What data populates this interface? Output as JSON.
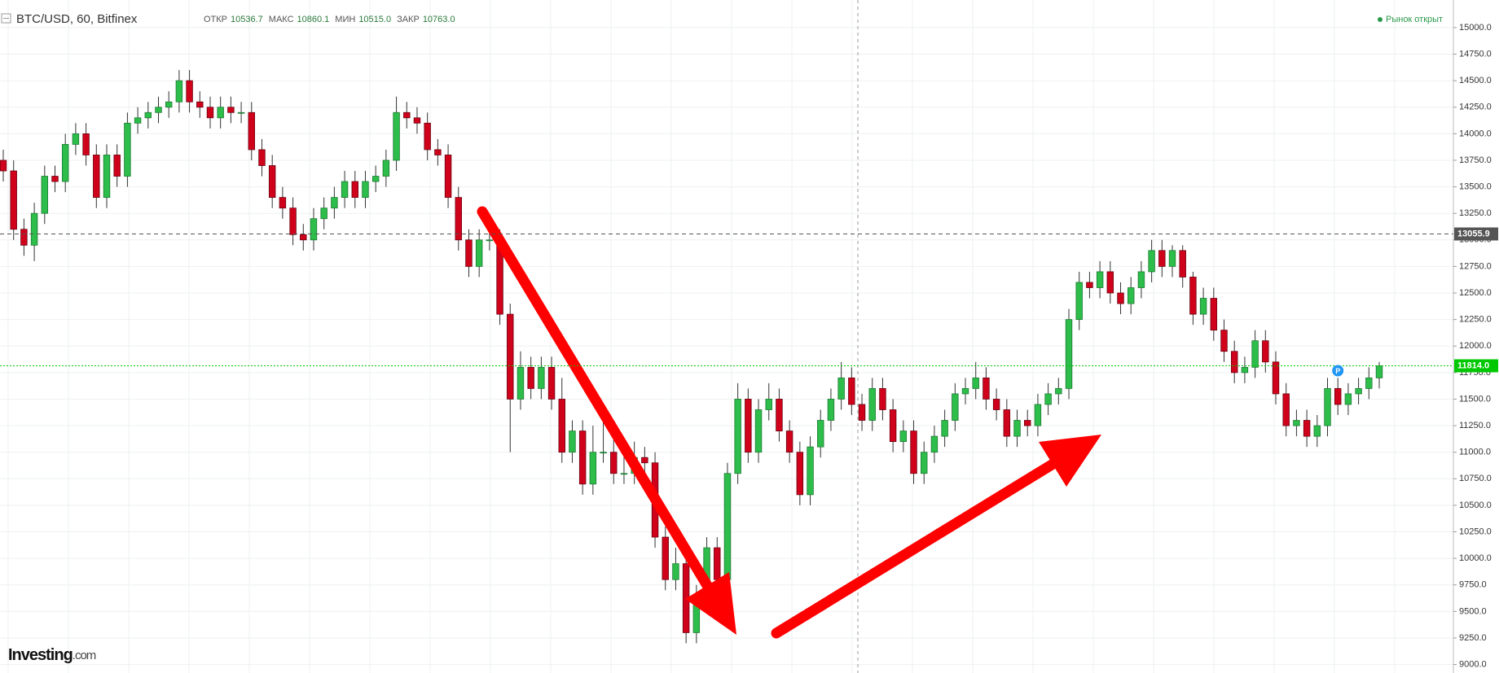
{
  "chart_data": {
    "type": "candlestick",
    "title": "BTC/USD, 60, Bitfinex",
    "header_stats": [
      {
        "label": "ОТКР",
        "value": "10536.7"
      },
      {
        "label": "МАКС",
        "value": "10860.1"
      },
      {
        "label": "МИН",
        "value": "10515.0"
      },
      {
        "label": "ЗАКР",
        "value": "10763.0"
      }
    ],
    "status": "Рынок открыт",
    "logo": {
      "name": "Investing",
      "suffix": ".com"
    },
    "marker": "P",
    "up_color": "#2dbd4a",
    "down_color": "#d0021b",
    "ylim": [
      8920,
      15260
    ],
    "yticks": [
      {
        "value": 9000,
        "label": "9000.0"
      },
      {
        "value": 9250,
        "label": "9250.0"
      },
      {
        "value": 9500,
        "label": "9500.0"
      },
      {
        "value": 9750,
        "label": "9750.0"
      },
      {
        "value": 10000,
        "label": "10000.0"
      },
      {
        "value": 10250,
        "label": "10250.0"
      },
      {
        "value": 10500,
        "label": "10500.0"
      },
      {
        "value": 10750,
        "label": "10750.0"
      },
      {
        "value": 11000,
        "label": "11000.0"
      },
      {
        "value": 11250,
        "label": "11250.0"
      },
      {
        "value": 11500,
        "label": "11500.0"
      },
      {
        "value": 11750,
        "label": "11750.0"
      },
      {
        "value": 12000,
        "label": "12000.0"
      },
      {
        "value": 12250,
        "label": "12250.0"
      },
      {
        "value": 12500,
        "label": "12500.0"
      },
      {
        "value": 12750,
        "label": "12750.0"
      },
      {
        "value": 13000,
        "label": "13000.0"
      },
      {
        "value": 13250,
        "label": "13250.0"
      },
      {
        "value": 13500,
        "label": "13500.0"
      },
      {
        "value": 13750,
        "label": "13750.0"
      },
      {
        "value": 14000,
        "label": "14000.0"
      },
      {
        "value": 14250,
        "label": "14250.0"
      },
      {
        "value": 14500,
        "label": "14500.0"
      },
      {
        "value": 14750,
        "label": "14750.0"
      },
      {
        "value": 15000,
        "label": "15000.0"
      }
    ],
    "price_lines": [
      {
        "value": 13055.9,
        "label": "13055.9",
        "color": "#555555"
      },
      {
        "value": 11814,
        "label": "11814.0",
        "color": "#00c800"
      }
    ],
    "grid": true,
    "open": [
      13750,
      13650,
      13100,
      12950,
      13250,
      13600,
      13550,
      13900,
      14000,
      13800,
      13400,
      13800,
      13600,
      14100,
      14150,
      14200,
      14250,
      14300,
      14500,
      14300,
      14250,
      14150,
      14250,
      14200,
      14200,
      13850,
      13700,
      13400,
      13300,
      13050,
      13000,
      13200,
      13300,
      13400,
      13550,
      13400,
      13550,
      13600,
      13750,
      14200,
      14150,
      14100,
      13850,
      13800,
      13400,
      13000,
      12750,
      13000,
      13000,
      12300,
      11500,
      11800,
      11600,
      11800,
      11500,
      11000,
      11200,
      10700,
      11000,
      11000,
      10800,
      10800,
      10950,
      10900,
      10200,
      9800,
      9950,
      9300,
      9600,
      10100,
      9800,
      10800,
      11500,
      11000,
      11400,
      11500,
      11200,
      11000,
      10600,
      11050,
      11300,
      11500,
      11700,
      11450,
      11300,
      11600,
      11400,
      11100,
      11200,
      10800,
      11000,
      11150,
      11300,
      11550,
      11600,
      11700,
      11500,
      11400,
      11150,
      11300,
      11250,
      11450,
      11550,
      11600,
      12250,
      12600,
      12550,
      12700,
      12500,
      12400,
      12550,
      12700,
      12900,
      12750,
      12900,
      12650,
      12300,
      12450,
      12150,
      11950,
      11750,
      11800,
      12050,
      11850,
      11550,
      11250,
      11300,
      11150,
      11250,
      11600,
      11450,
      11550,
      11600,
      11700
    ],
    "high": [
      13850,
      13750,
      13200,
      13350,
      13700,
      13700,
      14000,
      14100,
      14100,
      13900,
      13900,
      13900,
      14200,
      14250,
      14300,
      14350,
      14400,
      14600,
      14600,
      14400,
      14350,
      14350,
      14350,
      14300,
      14300,
      13950,
      13800,
      13500,
      13400,
      13150,
      13300,
      13400,
      13500,
      13650,
      13650,
      13650,
      13700,
      13850,
      14350,
      14300,
      14250,
      14200,
      13950,
      13900,
      13500,
      13100,
      13100,
      13150,
      13100,
      12400,
      11950,
      11900,
      11900,
      11900,
      11700,
      11300,
      11300,
      11250,
      11300,
      11250,
      11000,
      11100,
      11050,
      11000,
      10300,
      10100,
      10050,
      9750,
      10200,
      10200,
      10900,
      11650,
      11600,
      11500,
      11650,
      11600,
      11300,
      11100,
      11150,
      11400,
      11600,
      11850,
      11800,
      11550,
      11700,
      11700,
      11500,
      11300,
      11300,
      11100,
      11250,
      11400,
      11650,
      11700,
      11850,
      11800,
      11600,
      11500,
      11400,
      11400,
      11550,
      11650,
      11700,
      12350,
      12700,
      12700,
      12800,
      12800,
      12600,
      12650,
      12800,
      13000,
      13000,
      12950,
      12950,
      12700,
      12550,
      12550,
      12250,
      12050,
      11900,
      12150,
      12150,
      11950,
      11650,
      11400,
      11400,
      11350,
      11700,
      11700,
      11650,
      11700,
      11800,
      11850
    ],
    "low": [
      13550,
      13000,
      12850,
      12800,
      13150,
      13450,
      13450,
      13800,
      13700,
      13300,
      13300,
      13500,
      13500,
      14000,
      14050,
      14100,
      14150,
      14200,
      14200,
      14150,
      14050,
      14050,
      14100,
      14100,
      13750,
      13600,
      13300,
      13200,
      12950,
      12900,
      12900,
      13100,
      13200,
      13300,
      13300,
      13300,
      13450,
      13500,
      13650,
      14050,
      14000,
      13750,
      13700,
      13300,
      12900,
      12650,
      12650,
      12900,
      12200,
      11000,
      11400,
      11500,
      11500,
      11400,
      10900,
      10900,
      10600,
      10600,
      10900,
      10700,
      10700,
      10700,
      10800,
      10100,
      9700,
      9700,
      9200,
      9200,
      9500,
      9700,
      9700,
      10700,
      10900,
      10900,
      11300,
      11100,
      10900,
      10500,
      10500,
      10950,
      11200,
      11400,
      11350,
      11200,
      11200,
      11300,
      11000,
      11000,
      10700,
      10700,
      10900,
      11050,
      11200,
      11450,
      11500,
      11400,
      11300,
      11050,
      11050,
      11150,
      11150,
      11350,
      11450,
      11500,
      12150,
      12450,
      12450,
      12400,
      12300,
      12300,
      12450,
      12600,
      12650,
      12650,
      12550,
      12200,
      12200,
      12050,
      11850,
      11650,
      11650,
      11700,
      11750,
      11450,
      11150,
      11150,
      11050,
      11050,
      11150,
      11350,
      11350,
      11450,
      11500,
      11600
    ],
    "close": [
      13650,
      13100,
      12950,
      13250,
      13600,
      13550,
      13900,
      14000,
      13800,
      13400,
      13800,
      13600,
      14100,
      14150,
      14200,
      14250,
      14300,
      14500,
      14300,
      14250,
      14150,
      14250,
      14200,
      14200,
      13850,
      13700,
      13400,
      13300,
      13050,
      13000,
      13200,
      13300,
      13400,
      13550,
      13400,
      13550,
      13600,
      13750,
      14200,
      14150,
      14100,
      13850,
      13800,
      13400,
      13000,
      12750,
      13000,
      13000,
      12300,
      11500,
      11800,
      11600,
      11800,
      11500,
      11000,
      11200,
      10700,
      11000,
      11000,
      10800,
      10800,
      10950,
      10900,
      10200,
      9800,
      9950,
      9300,
      9600,
      10100,
      9800,
      10800,
      11500,
      11000,
      11400,
      11500,
      11200,
      11000,
      10600,
      11050,
      11300,
      11500,
      11700,
      11450,
      11300,
      11600,
      11400,
      11100,
      11200,
      10800,
      11000,
      11150,
      11300,
      11550,
      11600,
      11700,
      11500,
      11400,
      11150,
      11300,
      11250,
      11450,
      11550,
      11600,
      12250,
      12600,
      12550,
      12700,
      12500,
      12400,
      12550,
      12700,
      12900,
      12750,
      12900,
      12650,
      12300,
      12450,
      12150,
      11950,
      11750,
      11800,
      12050,
      11850,
      11550,
      11250,
      11300,
      11150,
      11250,
      11600,
      11450,
      11550,
      11600,
      11700,
      11814
    ]
  }
}
